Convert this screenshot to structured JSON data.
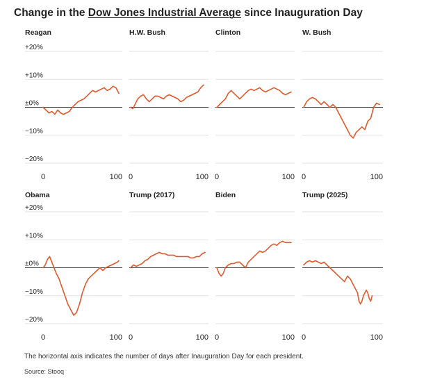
{
  "title": {
    "prefix": "Change in the ",
    "link": "Dow Jones Industrial Average",
    "suffix": " since Inauguration Day"
  },
  "note": "The horizontal axis indicates the number of days after Inauguration Day for each president.",
  "source": "Source: Stooq",
  "colors": {
    "line": "#e0592a",
    "zero": "#444444",
    "grid": "#e2e2e2",
    "text": "#222222"
  },
  "chart_data": [
    {
      "type": "line",
      "title": "Reagan",
      "xlim": [
        0,
        105
      ],
      "ylim": [
        -20,
        20
      ],
      "yticks": [
        "+20%",
        "+10%",
        "±0%",
        "−10%",
        "−20%"
      ],
      "xticks": [
        "0",
        "100"
      ],
      "x": [
        0,
        4,
        8,
        12,
        16,
        20,
        24,
        28,
        32,
        36,
        40,
        44,
        48,
        52,
        56,
        60,
        64,
        68,
        72,
        76,
        80,
        84,
        88,
        92,
        96,
        100,
        104
      ],
      "y": [
        0,
        -1,
        -2,
        -1.5,
        -2.5,
        -1,
        -2,
        -2.5,
        -2,
        -1.5,
        0,
        1,
        2,
        2.5,
        3,
        4,
        5,
        6,
        5.5,
        6,
        6.5,
        7,
        6,
        6.5,
        7.5,
        7,
        5
      ]
    },
    {
      "type": "line",
      "title": "H.W. Bush",
      "xlim": [
        0,
        105
      ],
      "ylim": [
        -20,
        20
      ],
      "yticks": [],
      "xticks": [
        "0",
        "100"
      ],
      "x": [
        0,
        3,
        6,
        10,
        14,
        18,
        22,
        26,
        30,
        34,
        38,
        42,
        46,
        50,
        54,
        58,
        62,
        66,
        70,
        74,
        78,
        82,
        86,
        90,
        94,
        98,
        102
      ],
      "y": [
        0,
        -0.5,
        1,
        3,
        4,
        4.5,
        3,
        2,
        3,
        4,
        4,
        3.5,
        3,
        4,
        4.5,
        4,
        3.5,
        3,
        2,
        2.5,
        3.5,
        4,
        4.5,
        5,
        5.5,
        7,
        8
      ]
    },
    {
      "type": "line",
      "title": "Clinton",
      "xlim": [
        0,
        105
      ],
      "ylim": [
        -20,
        20
      ],
      "yticks": [],
      "xticks": [
        "0",
        "100"
      ],
      "x": [
        0,
        4,
        8,
        12,
        16,
        20,
        24,
        28,
        32,
        36,
        40,
        44,
        48,
        52,
        56,
        60,
        64,
        68,
        72,
        76,
        80,
        84,
        88,
        92,
        96,
        100,
        104
      ],
      "y": [
        0,
        1,
        2,
        3,
        5,
        6,
        5,
        4,
        3,
        4,
        5,
        6,
        6.5,
        6,
        6.5,
        7,
        6,
        5.5,
        6,
        6.5,
        7,
        6.5,
        6,
        5,
        4.5,
        5,
        5.5
      ]
    },
    {
      "type": "line",
      "title": "W. Bush",
      "xlim": [
        0,
        105
      ],
      "ylim": [
        -20,
        20
      ],
      "yticks": [],
      "xticks": [
        "0",
        "100"
      ],
      "x": [
        0,
        4,
        8,
        12,
        16,
        20,
        24,
        28,
        32,
        36,
        40,
        44,
        48,
        52,
        56,
        60,
        64,
        68,
        72,
        76,
        80,
        84,
        88,
        92,
        96,
        100,
        104
      ],
      "y": [
        0,
        2,
        3,
        3.5,
        3,
        2,
        1,
        2,
        1,
        0,
        1,
        0,
        -2,
        -4,
        -6,
        -8,
        -10,
        -11,
        -9,
        -8,
        -7,
        -8,
        -5,
        -4,
        0,
        1.5,
        1
      ]
    },
    {
      "type": "line",
      "title": "Obama",
      "xlim": [
        0,
        105
      ],
      "ylim": [
        -20,
        20
      ],
      "yticks": [
        "+20%",
        "+10%",
        "±0%",
        "−10%",
        "−20%"
      ],
      "xticks": [
        "0",
        "100"
      ],
      "x": [
        0,
        3,
        6,
        9,
        12,
        15,
        18,
        22,
        26,
        30,
        34,
        38,
        42,
        46,
        50,
        54,
        58,
        62,
        66,
        70,
        74,
        78,
        82,
        86,
        90,
        94,
        98,
        102,
        104
      ],
      "y": [
        0,
        1,
        3,
        4,
        2,
        0,
        -2,
        -4,
        -7,
        -10,
        -13,
        -15,
        -17,
        -16,
        -13,
        -9,
        -6,
        -4,
        -3,
        -2,
        -1,
        0,
        -1,
        0,
        0.5,
        1,
        1.5,
        2,
        2.5
      ]
    },
    {
      "type": "line",
      "title": "Trump (2017)",
      "xlim": [
        0,
        105
      ],
      "ylim": [
        -20,
        20
      ],
      "yticks": [],
      "xticks": [
        "0",
        "100"
      ],
      "x": [
        0,
        4,
        8,
        12,
        16,
        20,
        24,
        28,
        32,
        36,
        40,
        44,
        48,
        52,
        56,
        60,
        64,
        68,
        72,
        76,
        80,
        84,
        88,
        92,
        96,
        100,
        104
      ],
      "y": [
        0,
        1,
        0.5,
        1,
        1.5,
        2.5,
        3,
        4,
        4.5,
        5,
        5.5,
        5,
        5,
        4.5,
        4.5,
        4.5,
        4,
        4,
        4,
        4,
        4,
        3.5,
        3.5,
        4,
        4,
        5,
        5.5
      ]
    },
    {
      "type": "line",
      "title": "Biden",
      "xlim": [
        0,
        105
      ],
      "ylim": [
        -20,
        20
      ],
      "yticks": [],
      "xticks": [
        "0",
        "100"
      ],
      "x": [
        0,
        3,
        6,
        9,
        12,
        16,
        20,
        24,
        28,
        32,
        36,
        40,
        44,
        48,
        52,
        56,
        60,
        64,
        68,
        72,
        76,
        80,
        84,
        88,
        92,
        96,
        100,
        104
      ],
      "y": [
        0,
        -2,
        -3,
        -2,
        0,
        1,
        1.5,
        1.5,
        2,
        2,
        1,
        0,
        2,
        3,
        4,
        5,
        6,
        5.5,
        6,
        7,
        8,
        8.5,
        8,
        9,
        9.5,
        9,
        9,
        9
      ]
    },
    {
      "type": "line",
      "title": "Trump (2025)",
      "xlim": [
        0,
        105
      ],
      "ylim": [
        -20,
        20
      ],
      "yticks": [],
      "xticks": [
        "0",
        "100"
      ],
      "x": [
        0,
        4,
        8,
        12,
        16,
        20,
        24,
        28,
        32,
        36,
        40,
        44,
        48,
        52,
        56,
        60,
        64,
        68,
        72,
        74,
        76,
        78,
        80,
        82,
        84,
        86,
        88,
        90,
        92,
        94
      ],
      "y": [
        1,
        2,
        2.5,
        2,
        2.5,
        2,
        1.5,
        2,
        1,
        0,
        -1,
        -2,
        -3,
        -4,
        -5,
        -3,
        -4,
        -6,
        -8,
        -9,
        -12,
        -13,
        -12,
        -10,
        -9,
        -8,
        -9,
        -11,
        -12,
        -10
      ]
    }
  ]
}
